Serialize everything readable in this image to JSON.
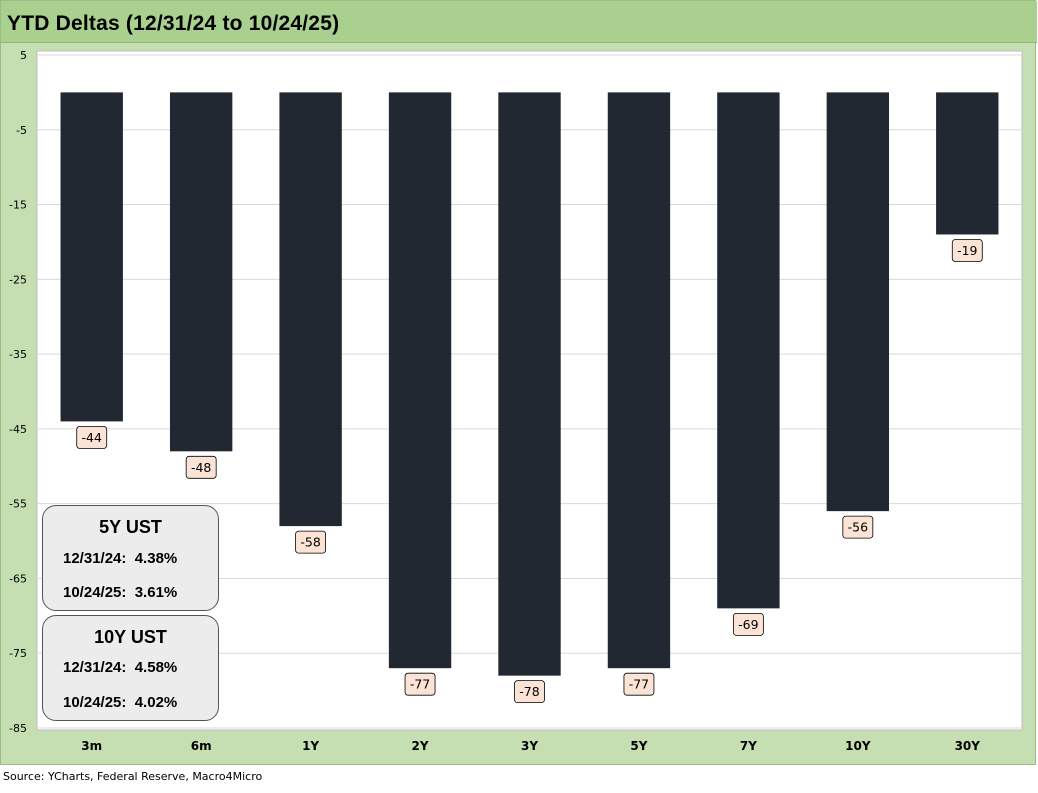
{
  "title": "YTD Deltas (12/31/24 to 10/24/25)",
  "source": "Source: YCharts, Federal Reserve, Macro4Micro",
  "colors": {
    "bar": "#222831",
    "label_bg": "#fbe4d5",
    "plot_bg": "#ffffff",
    "frame": "#c6dfb2",
    "title_bar": "#a9d08e",
    "box_bg": "#ececec"
  },
  "chart_data": {
    "type": "bar",
    "title": "YTD Deltas (12/31/24 to 10/24/25)",
    "categories": [
      "3m",
      "6m",
      "1Y",
      "2Y",
      "3Y",
      "5Y",
      "7Y",
      "10Y",
      "30Y"
    ],
    "values": [
      -44,
      -48,
      -58,
      -77,
      -78,
      -77,
      -69,
      -56,
      -19
    ],
    "data_labels": [
      "-44",
      "-48",
      "-58",
      "-77",
      "-78",
      "-77",
      "-69",
      "-56",
      "-19"
    ],
    "ylim": [
      -85,
      5
    ],
    "yticks": [
      5,
      -5,
      -15,
      -25,
      -35,
      -45,
      -55,
      -65,
      -75,
      -85
    ],
    "ytick_labels": [
      "5",
      "-5",
      "-15",
      "-25",
      "-35",
      "-45",
      "-55",
      "-65",
      "-75",
      "-85"
    ],
    "xlabel": "",
    "ylabel": "",
    "grid": true,
    "legend": "none"
  },
  "boxes": [
    {
      "title": "5Y UST",
      "rows": [
        "12/31/24:  4.38%",
        "10/24/25:  3.61%"
      ]
    },
    {
      "title": "10Y UST",
      "rows": [
        "12/31/24:  4.58%",
        "10/24/25:  4.02%"
      ]
    }
  ]
}
